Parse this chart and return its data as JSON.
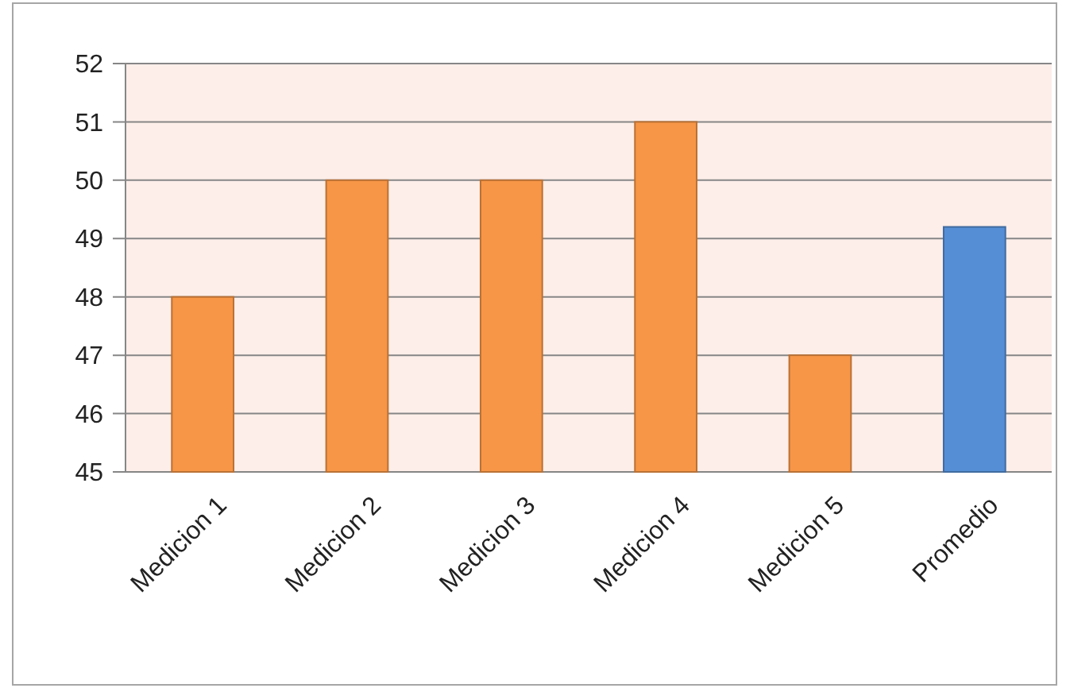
{
  "chart_data": {
    "type": "bar",
    "categories": [
      "Medicion 1",
      "Medicion 2",
      "Medicion 3",
      "Medicion 4",
      "Medicion 5",
      "Promedio"
    ],
    "values": [
      48,
      50,
      50,
      51,
      47,
      49.2
    ],
    "colors": [
      "#f79646",
      "#f79646",
      "#f79646",
      "#f79646",
      "#f79646",
      "#558ed5"
    ],
    "ylim": [
      45,
      52
    ],
    "yticks": [
      45,
      46,
      47,
      48,
      49,
      50,
      51,
      52
    ],
    "grid": "y"
  }
}
